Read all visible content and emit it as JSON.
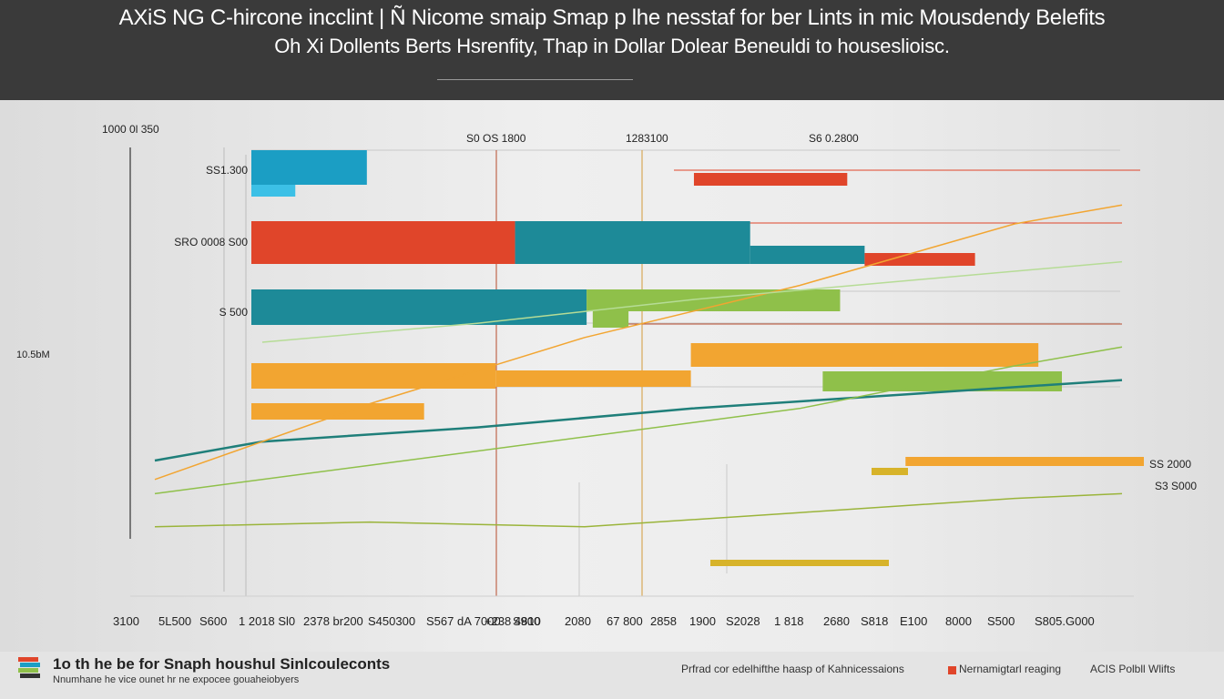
{
  "header": {
    "title_line1": "AXiS NG C-hircone incclint | Ñ Nicome smaip Smap p lhe nesstaf for ber Lints in mic Mousdendy Belefits",
    "title_line2": "Oh Xi Dollents Berts Hsrenfity, Thap in Dollar Dolear Beneuldi to houseslioisc."
  },
  "legend": {
    "title": "1o th he be for Snaph houshul Sinlcouleconts",
    "subtitle": "Nnumhane he vice ounet hr ne expocee gouaheiobyers",
    "items": [
      {
        "label": "Prfrad cor edelhifthe haasp of Kahnicessaions",
        "color": ""
      },
      {
        "label": "Nernamigtarl reaging",
        "color": "#e0452a"
      },
      {
        "label": "ACIS Polbll Wlifts",
        "color": ""
      }
    ]
  },
  "chart_data": {
    "type": "bar",
    "title": "AXiS NG C-hircone incclint | Ñ Nicome smaip Smap p lhe nesstaf for ber Lints in mic Mousdendy Belefits",
    "colors": {
      "blue": "#1b9ec4",
      "cyan": "#3cc0e6",
      "red": "#e0452a",
      "teal": "#1d8a98",
      "green": "#8fc04a",
      "orange": "#f2a531",
      "darkteal": "#1f7f7a",
      "olive": "#9ab43a",
      "lightgreen": "#b6dc96",
      "yellow": "#d7b32a"
    },
    "xlim": [
      0,
      10000
    ],
    "y_axis_top_label": "1000 0l 350",
    "y_axis_mid_label": "10.5bM",
    "x_ticks": [
      "3100",
      "5L500",
      "S600",
      "1 2018 Sl0",
      "2378 br200",
      "S450300",
      "S567 dA 7000",
      "+238 4810",
      "S900",
      "2080",
      "67 800",
      "2858",
      "1900",
      "S2028",
      "1 818",
      "2680",
      "S818",
      "E100",
      "8000",
      "S500",
      "S805.G000"
    ],
    "top_annotations": [
      "S0 OS 1800",
      "1283100",
      "S6 0.2800"
    ],
    "row_labels": [
      "SS1.300",
      "SRO 0008 S00",
      "S 500"
    ],
    "right_labels": [
      "SS 2000",
      "S3 S000"
    ],
    "series": [
      {
        "name": "blue-top",
        "color_key": "blue",
        "values": [
          [
            2070,
            3200
          ],
          [
            6350,
            3400
          ]
        ]
      },
      {
        "name": "cyan-under",
        "color_key": "cyan",
        "values": [
          [
            2070,
            2500
          ]
        ]
      },
      {
        "name": "red-right-1",
        "color_key": "red",
        "values": [
          [
            6400,
            7900
          ]
        ]
      },
      {
        "name": "red-row2",
        "color_key": "red",
        "values": [
          [
            2070,
            4650
          ]
        ]
      },
      {
        "name": "teal-row2",
        "color_key": "teal",
        "values": [
          [
            4650,
            6950
          ],
          [
            6950,
            8070
          ]
        ]
      },
      {
        "name": "red-right-2",
        "color_key": "red",
        "values": [
          [
            8070,
            9150
          ]
        ]
      },
      {
        "name": "teal-row3",
        "color_key": "teal",
        "values": [
          [
            2070,
            5350
          ]
        ]
      },
      {
        "name": "green-row3",
        "color_key": "green",
        "values": [
          [
            5350,
            7830
          ],
          [
            5410,
            5760
          ]
        ]
      },
      {
        "name": "orange-row4",
        "color_key": "orange",
        "values": [
          [
            6370,
            9770
          ],
          [
            2070,
            4460
          ],
          [
            4460,
            6370
          ],
          [
            2070,
            3760
          ]
        ]
      },
      {
        "name": "green-row4",
        "color_key": "green",
        "values": [
          [
            7660,
            10000
          ]
        ]
      },
      {
        "name": "orange-right",
        "color_key": "orange",
        "values": [
          [
            8470,
            11200
          ]
        ]
      }
    ],
    "lines": [
      {
        "name": "darkteal-trend",
        "color_key": "darkteal",
        "values": [
          [
            1000,
            20
          ],
          [
            2000,
            24
          ],
          [
            4000,
            27
          ],
          [
            6000,
            31
          ],
          [
            8000,
            34
          ],
          [
            10000,
            37
          ]
        ]
      },
      {
        "name": "orange-trend",
        "color_key": "orange",
        "values": [
          [
            1000,
            16
          ],
          [
            3000,
            32
          ],
          [
            5000,
            46
          ],
          [
            7000,
            57
          ],
          [
            9000,
            70
          ],
          [
            10000,
            74
          ]
        ]
      },
      {
        "name": "green-trend-1",
        "color_key": "green",
        "values": [
          [
            1000,
            13
          ],
          [
            3000,
            19
          ],
          [
            5000,
            25
          ],
          [
            7000,
            31
          ],
          [
            9000,
            40
          ],
          [
            10000,
            44
          ]
        ]
      },
      {
        "name": "olive-trend",
        "color_key": "olive",
        "values": [
          [
            1000,
            6
          ],
          [
            3000,
            7
          ],
          [
            5000,
            6
          ],
          [
            7000,
            9
          ],
          [
            9000,
            12
          ],
          [
            10000,
            13
          ]
        ]
      },
      {
        "name": "lightgreen-trend",
        "color_key": "lightgreen",
        "values": [
          [
            2000,
            45
          ],
          [
            4000,
            49
          ],
          [
            6000,
            54
          ],
          [
            8000,
            58
          ],
          [
            10000,
            62
          ]
        ]
      }
    ]
  }
}
